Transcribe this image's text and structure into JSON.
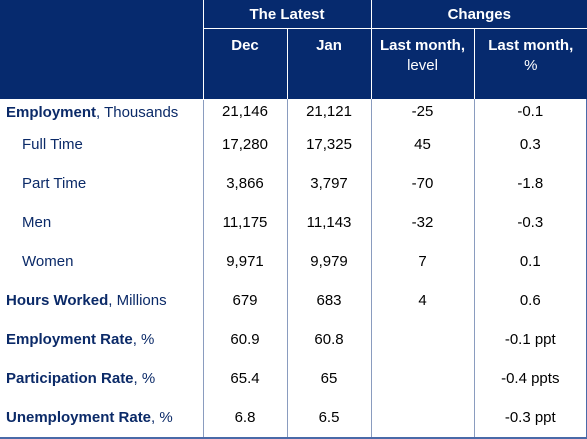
{
  "header": {
    "group_latest": "The Latest",
    "group_changes": "Changes",
    "col_dec": "Dec",
    "col_jan": "Jan",
    "col_lm_level_line1": "Last month,",
    "col_lm_level_line2": "level",
    "col_lm_pct_line1": "Last month,",
    "col_lm_pct_line2": "%"
  },
  "rows": [
    {
      "label_bold": "Employment",
      "label_unit": ", Thousands",
      "dec": "21,146",
      "jan": "21,121",
      "lm_level": "-25",
      "lm_pct": "-0.1"
    },
    {
      "label": "Full Time",
      "dec": "17,280",
      "jan": "17,325",
      "lm_level": "45",
      "lm_pct": "0.3"
    },
    {
      "label": "Part Time",
      "dec": "3,866",
      "jan": "3,797",
      "lm_level": "-70",
      "lm_pct": "-1.8"
    },
    {
      "label": "Men",
      "dec": "11,175",
      "jan": "11,143",
      "lm_level": "-32",
      "lm_pct": "-0.3"
    },
    {
      "label": "Women",
      "dec": "9,971",
      "jan": "9,979",
      "lm_level": "7",
      "lm_pct": "0.1"
    },
    {
      "label_bold": "Hours Worked",
      "label_unit": ", Millions",
      "dec": "679",
      "jan": "683",
      "lm_level": "4",
      "lm_pct": "0.6"
    },
    {
      "label_bold": "Employment Rate",
      "label_unit": ", %",
      "dec": "60.9",
      "jan": "60.8",
      "lm_level": "",
      "lm_pct": "-0.1 ppt"
    },
    {
      "label_bold": "Participation Rate",
      "label_unit": ", %",
      "dec": "65.4",
      "jan": "65",
      "lm_level": "",
      "lm_pct": "-0.4 ppts"
    },
    {
      "label_bold": "Unemployment Rate",
      "label_unit": ", %",
      "dec": "6.8",
      "jan": "6.5",
      "lm_level": "",
      "lm_pct": "-0.3 ppt"
    }
  ],
  "colors": {
    "header_bg": "#062a6e",
    "label_text": "#0b2a68",
    "border": "#4a6aa8"
  }
}
